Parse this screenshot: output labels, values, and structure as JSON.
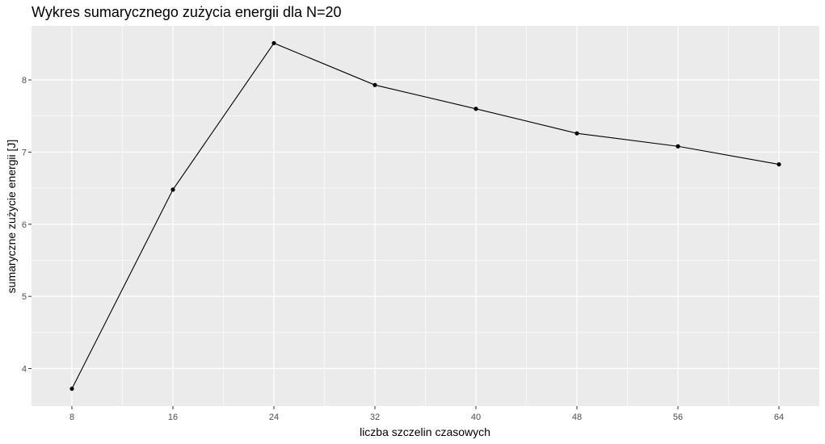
{
  "chart_data": {
    "type": "line",
    "title": "Wykres sumarycznego zużycia energii dla N=20",
    "xlabel": "liczba szczelin czasowych",
    "ylabel": "sumaryczne zużycie energii [J]",
    "x": [
      8,
      16,
      24,
      32,
      40,
      48,
      56,
      64
    ],
    "y": [
      3.72,
      6.48,
      8.51,
      7.93,
      7.6,
      7.26,
      7.08,
      6.83
    ],
    "xticks": [
      8,
      16,
      24,
      32,
      40,
      48,
      56,
      64
    ],
    "xtick_labels": [
      "8",
      "16",
      "24",
      "32",
      "40",
      "48",
      "56",
      "64"
    ],
    "yticks": [
      4,
      5,
      6,
      7,
      8
    ],
    "ytick_labels": [
      "4",
      "5",
      "6",
      "7",
      "8"
    ],
    "xlim": [
      4.8,
      67.2
    ],
    "ylim": [
      3.48,
      8.75
    ],
    "grid": true,
    "colors": {
      "panel": "#ebebeb",
      "grid": "#ffffff",
      "line": "#000000",
      "point": "#000000"
    }
  }
}
